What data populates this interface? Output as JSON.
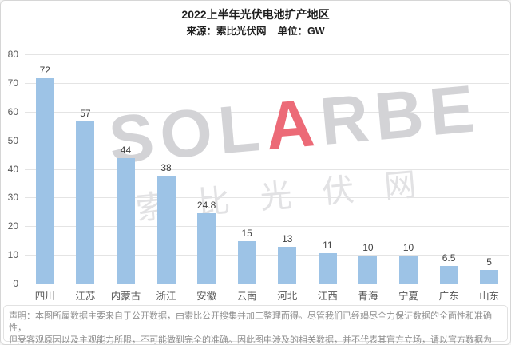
{
  "header": {
    "title": "2022上半年光伏电池扩产地区",
    "source_label": "来源：索比光伏网",
    "unit_label": "单位：GW"
  },
  "chart_data": {
    "type": "bar",
    "title": "2022上半年光伏电池扩产地区",
    "source": "索比光伏网",
    "unit": "GW",
    "categories": [
      "四川",
      "江苏",
      "内蒙古",
      "浙江",
      "安徽",
      "云南",
      "河北",
      "江西",
      "青海",
      "宁夏",
      "广东",
      "山东"
    ],
    "values": [
      72,
      57,
      44,
      38,
      24.8,
      15,
      13,
      11,
      10,
      10,
      6.5,
      5
    ],
    "xlabel": "",
    "ylabel": "",
    "ylim": [
      0,
      80
    ],
    "yticks": [
      0,
      10,
      20,
      30,
      40,
      50,
      60,
      70,
      80
    ],
    "grid": true,
    "legend": false,
    "bar_color": "#9DC3E6",
    "value_label_color": "#404040",
    "axis_label_color": "#595959"
  },
  "watermark": {
    "latin_prefix": "SOL",
    "latin_a": "A",
    "latin_suffix": "RBE",
    "latin_full": "SOLARBE",
    "chinese": "索比光伏网",
    "a_color": "#EC6A77"
  },
  "disclaimer": {
    "line1": "声明：本图所属数据主要来自于公开数据，由索比公开搜集并加工整理而得。尽管我们已经竭尽全力保证数据的全面性和准确性，",
    "line2": "但受客观原因以及主观能力所限，不可能做到完全的准确。因此图中涉及的相关数据，并不代表其官方立场，请以官方数据为准。"
  }
}
